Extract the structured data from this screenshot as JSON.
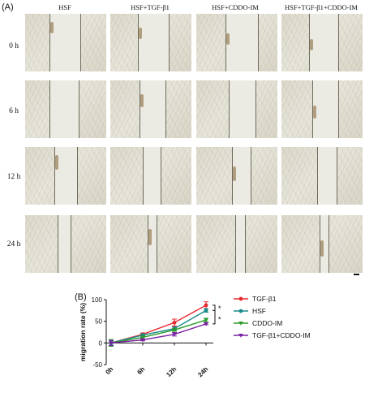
{
  "panel_a_label": "(A)",
  "panel_b_label": "(B)",
  "column_headers": [
    "HSF",
    "HSF+TGF-β1",
    "HSF+CDDO-IM",
    "HSF+TGF-β1+CDDO-IM"
  ],
  "row_labels": [
    "0 h",
    "6 h",
    "12 h",
    "24 h"
  ],
  "chart_data": {
    "type": "line",
    "title": "",
    "xlabel": "",
    "ylabel": "migration rate (%)",
    "categories": [
      "0h",
      "6h",
      "12h",
      "24h"
    ],
    "ylim": [
      -50,
      100
    ],
    "yticks": [
      "100",
      "50",
      "0",
      "-50"
    ],
    "legend_position": "right",
    "series": [
      {
        "name": "TGF-β1",
        "color": "#e8282d",
        "marker": "dot",
        "values": [
          0,
          20,
          47,
          87
        ],
        "errors": [
          5,
          3,
          8,
          8
        ]
      },
      {
        "name": "HSF",
        "color": "#1a8a8a",
        "marker": "dot",
        "values": [
          0,
          18,
          33,
          75
        ],
        "errors": [
          5,
          3,
          4,
          4
        ]
      },
      {
        "name": "CDDO-IM",
        "color": "#2a9a2a",
        "marker": "triangle-down",
        "values": [
          0,
          13,
          30,
          53
        ],
        "errors": [
          8,
          3,
          3,
          4
        ]
      },
      {
        "name": "TGF-β1+CDDO-IM",
        "color": "#7a1fa2",
        "marker": "triangle-down",
        "values": [
          0,
          7,
          20,
          44
        ],
        "errors": [
          6,
          2,
          4,
          2
        ]
      }
    ],
    "significance": [
      "*",
      "*"
    ]
  }
}
